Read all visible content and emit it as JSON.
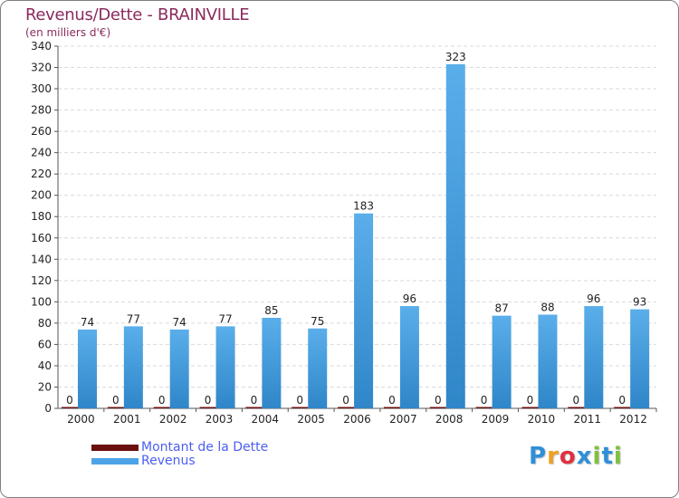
{
  "chart_data": {
    "type": "bar",
    "title": "Revenus/Dette - BRAINVILLE",
    "subtitle": "(en milliers d'€)",
    "xlabel": "",
    "ylabel": "",
    "ylim": [
      0,
      340
    ],
    "ytick_step": 20,
    "yticks": [
      "0",
      "20",
      "40",
      "60",
      "80",
      "100",
      "120",
      "140",
      "160",
      "180",
      "200",
      "220",
      "240",
      "260",
      "280",
      "300",
      "320",
      "340"
    ],
    "grid": true,
    "legend_position": "bottom-left",
    "categories": [
      "2000",
      "2001",
      "2002",
      "2003",
      "2004",
      "2005",
      "2006",
      "2007",
      "2008",
      "2009",
      "2010",
      "2011",
      "2012"
    ],
    "series": [
      {
        "name": "Montant de la Dette",
        "color": "#6b0f0f",
        "values": [
          0,
          0,
          0,
          0,
          0,
          0,
          0,
          0,
          0,
          0,
          0,
          0,
          0
        ]
      },
      {
        "name": "Revenus",
        "color": "#4ea3e6",
        "values": [
          74,
          77,
          74,
          77,
          85,
          75,
          183,
          96,
          323,
          87,
          88,
          96,
          93
        ]
      }
    ]
  },
  "logo": {
    "letters": [
      "P",
      "r",
      "o",
      "x",
      "i",
      "t",
      "i"
    ],
    "colors": [
      "#2f8fd8",
      "#f0a020",
      "#e03040",
      "#2f8fd8",
      "#80c040",
      "#2f8fd8",
      "#80c040"
    ]
  }
}
